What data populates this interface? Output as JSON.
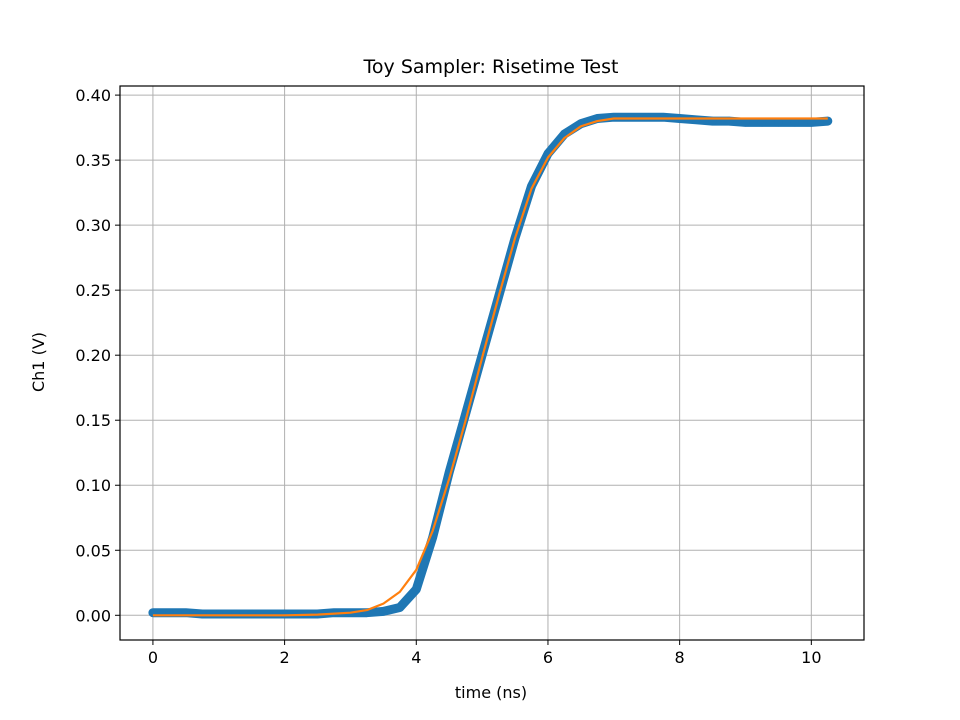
{
  "chart_data": {
    "type": "line",
    "title": "Toy Sampler: Risetime Test",
    "xlabel": "time (ns)",
    "ylabel": "Ch1 (V)",
    "xlim": [
      -0.5,
      10.8
    ],
    "ylim": [
      -0.019,
      0.407
    ],
    "x_ticks": [
      0,
      2,
      4,
      6,
      8,
      10
    ],
    "y_ticks": [
      0.0,
      0.05,
      0.1,
      0.15,
      0.2,
      0.25,
      0.3,
      0.35,
      0.4
    ],
    "grid": true,
    "legend": "none",
    "series": [
      {
        "kind": "scatter",
        "color": "#1f77b4",
        "x": [
          0.0,
          0.25,
          0.5,
          0.75,
          1.0,
          1.25,
          1.5,
          1.75,
          2.0,
          2.25,
          2.5,
          2.75,
          3.0,
          3.25,
          3.5,
          3.75,
          4.0,
          4.25,
          4.5,
          4.75,
          5.0,
          5.25,
          5.5,
          5.75,
          6.0,
          6.25,
          6.5,
          6.75,
          7.0,
          7.25,
          7.5,
          7.75,
          8.0,
          8.25,
          8.5,
          8.75,
          9.0,
          9.25,
          9.5,
          9.75,
          10.0,
          10.25
        ],
        "y": [
          0.002,
          0.002,
          0.002,
          0.001,
          0.001,
          0.001,
          0.001,
          0.001,
          0.001,
          0.001,
          0.001,
          0.002,
          0.002,
          0.002,
          0.003,
          0.006,
          0.02,
          0.06,
          0.11,
          0.155,
          0.2,
          0.245,
          0.29,
          0.33,
          0.355,
          0.37,
          0.378,
          0.382,
          0.383,
          0.383,
          0.383,
          0.383,
          0.382,
          0.381,
          0.38,
          0.38,
          0.379,
          0.379,
          0.379,
          0.379,
          0.379,
          0.38
        ]
      },
      {
        "kind": "line",
        "color": "#ff7f0e",
        "x": [
          0.0,
          0.5,
          1.0,
          1.5,
          2.0,
          2.5,
          3.0,
          3.25,
          3.5,
          3.75,
          4.0,
          4.25,
          4.5,
          4.75,
          5.0,
          5.25,
          5.5,
          5.75,
          6.0,
          6.25,
          6.5,
          6.75,
          7.0,
          7.25,
          7.5,
          8.0,
          8.5,
          9.0,
          9.5,
          10.0,
          10.25
        ],
        "y": [
          0.0,
          0.0,
          0.0,
          0.0,
          0.0,
          0.0005,
          0.002,
          0.004,
          0.009,
          0.018,
          0.035,
          0.065,
          0.105,
          0.15,
          0.198,
          0.245,
          0.29,
          0.328,
          0.352,
          0.367,
          0.376,
          0.38,
          0.382,
          0.382,
          0.382,
          0.382,
          0.382,
          0.382,
          0.382,
          0.382,
          0.382
        ]
      }
    ]
  }
}
